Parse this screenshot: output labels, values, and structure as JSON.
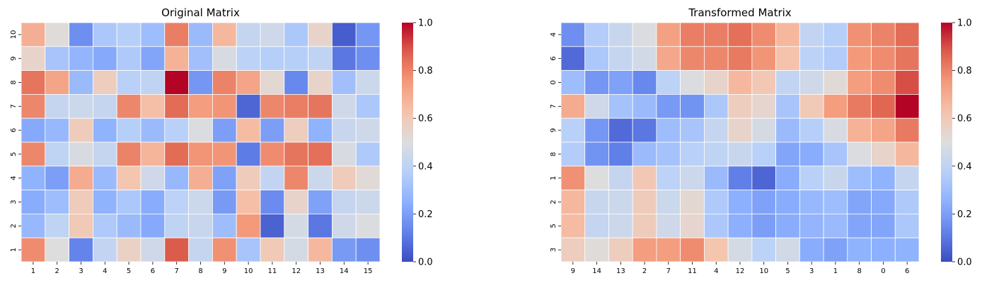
{
  "chart_data": [
    {
      "type": "heatmap",
      "title": "Original Matrix",
      "x_labels": [
        "1",
        "2",
        "3",
        "4",
        "5",
        "6",
        "7",
        "8",
        "9",
        "10",
        "11",
        "12",
        "13",
        "14",
        "15"
      ],
      "y_labels": [
        "10",
        "9",
        "8",
        "7",
        "6",
        "5",
        "4",
        "3",
        "2",
        "1"
      ],
      "values": [
        [
          0.69,
          0.51,
          0.16,
          0.34,
          0.37,
          0.3,
          0.81,
          0.29,
          0.66,
          0.42,
          0.45,
          0.34,
          0.55,
          0.04,
          0.18
        ],
        [
          0.55,
          0.33,
          0.27,
          0.23,
          0.35,
          0.22,
          0.68,
          0.31,
          0.48,
          0.39,
          0.37,
          0.37,
          0.4,
          0.1,
          0.16
        ],
        [
          0.83,
          0.72,
          0.29,
          0.58,
          0.38,
          0.4,
          1.0,
          0.18,
          0.8,
          0.72,
          0.53,
          0.14,
          0.55,
          0.31,
          0.44
        ],
        [
          0.79,
          0.42,
          0.44,
          0.42,
          0.79,
          0.64,
          0.85,
          0.74,
          0.76,
          0.06,
          0.79,
          0.81,
          0.83,
          0.45,
          0.34
        ],
        [
          0.23,
          0.28,
          0.59,
          0.26,
          0.37,
          0.29,
          0.38,
          0.49,
          0.2,
          0.65,
          0.2,
          0.58,
          0.26,
          0.43,
          0.45
        ],
        [
          0.79,
          0.4,
          0.48,
          0.42,
          0.8,
          0.67,
          0.85,
          0.76,
          0.76,
          0.11,
          0.78,
          0.83,
          0.84,
          0.48,
          0.35
        ],
        [
          0.26,
          0.2,
          0.7,
          0.29,
          0.62,
          0.45,
          0.28,
          0.69,
          0.21,
          0.59,
          0.41,
          0.79,
          0.44,
          0.59,
          0.52
        ],
        [
          0.24,
          0.3,
          0.59,
          0.26,
          0.34,
          0.24,
          0.39,
          0.44,
          0.19,
          0.64,
          0.15,
          0.55,
          0.21,
          0.42,
          0.44
        ],
        [
          0.28,
          0.4,
          0.6,
          0.35,
          0.29,
          0.23,
          0.4,
          0.43,
          0.3,
          0.75,
          0.05,
          0.47,
          0.1,
          0.45,
          0.49
        ],
        [
          0.78,
          0.5,
          0.13,
          0.41,
          0.56,
          0.45,
          0.88,
          0.42,
          0.77,
          0.33,
          0.6,
          0.47,
          0.66,
          0.19,
          0.16
        ]
      ],
      "colorbar": {
        "min": 0.0,
        "max": 1.0,
        "ticks": [
          "0.0",
          "0.2",
          "0.4",
          "0.6",
          "0.8",
          "1.0"
        ]
      },
      "colormap": "coolwarm"
    },
    {
      "type": "heatmap",
      "title": "Transformed Matrix",
      "x_labels": [
        "9",
        "14",
        "13",
        "2",
        "7",
        "11",
        "4",
        "12",
        "10",
        "5",
        "3",
        "1",
        "8",
        "0",
        "6"
      ],
      "y_labels": [
        "4",
        "6",
        "0",
        "7",
        "9",
        "8",
        "1",
        "2",
        "5",
        "3"
      ],
      "values": [
        [
          0.16,
          0.36,
          0.43,
          0.49,
          0.73,
          0.81,
          0.81,
          0.84,
          0.78,
          0.66,
          0.41,
          0.37,
          0.77,
          0.8,
          0.85
        ],
        [
          0.07,
          0.34,
          0.42,
          0.46,
          0.71,
          0.79,
          0.79,
          0.82,
          0.76,
          0.63,
          0.39,
          0.36,
          0.75,
          0.78,
          0.83
        ],
        [
          0.3,
          0.18,
          0.21,
          0.14,
          0.39,
          0.49,
          0.55,
          0.66,
          0.61,
          0.41,
          0.45,
          0.52,
          0.74,
          0.78,
          0.9
        ],
        [
          0.7,
          0.45,
          0.32,
          0.29,
          0.19,
          0.17,
          0.34,
          0.58,
          0.54,
          0.33,
          0.6,
          0.74,
          0.82,
          0.86,
          1.0
        ],
        [
          0.38,
          0.18,
          0.07,
          0.1,
          0.3,
          0.33,
          0.42,
          0.55,
          0.47,
          0.29,
          0.37,
          0.48,
          0.68,
          0.72,
          0.82
        ],
        [
          0.36,
          0.17,
          0.12,
          0.29,
          0.32,
          0.38,
          0.4,
          0.43,
          0.38,
          0.22,
          0.24,
          0.33,
          0.49,
          0.55,
          0.66
        ],
        [
          0.77,
          0.5,
          0.42,
          0.61,
          0.39,
          0.44,
          0.29,
          0.12,
          0.06,
          0.24,
          0.38,
          0.43,
          0.3,
          0.26,
          0.42
        ],
        [
          0.66,
          0.43,
          0.44,
          0.59,
          0.44,
          0.53,
          0.35,
          0.25,
          0.21,
          0.24,
          0.28,
          0.3,
          0.22,
          0.23,
          0.35
        ],
        [
          0.65,
          0.42,
          0.44,
          0.59,
          0.45,
          0.54,
          0.34,
          0.25,
          0.2,
          0.24,
          0.27,
          0.29,
          0.22,
          0.22,
          0.34
        ],
        [
          0.58,
          0.51,
          0.58,
          0.74,
          0.74,
          0.78,
          0.62,
          0.47,
          0.39,
          0.46,
          0.24,
          0.21,
          0.26,
          0.25,
          0.26
        ]
      ],
      "colorbar": {
        "min": 0.0,
        "max": 1.0,
        "ticks": [
          "0.0",
          "0.2",
          "0.4",
          "0.6",
          "0.8",
          "1.0"
        ]
      },
      "colormap": "coolwarm"
    }
  ]
}
